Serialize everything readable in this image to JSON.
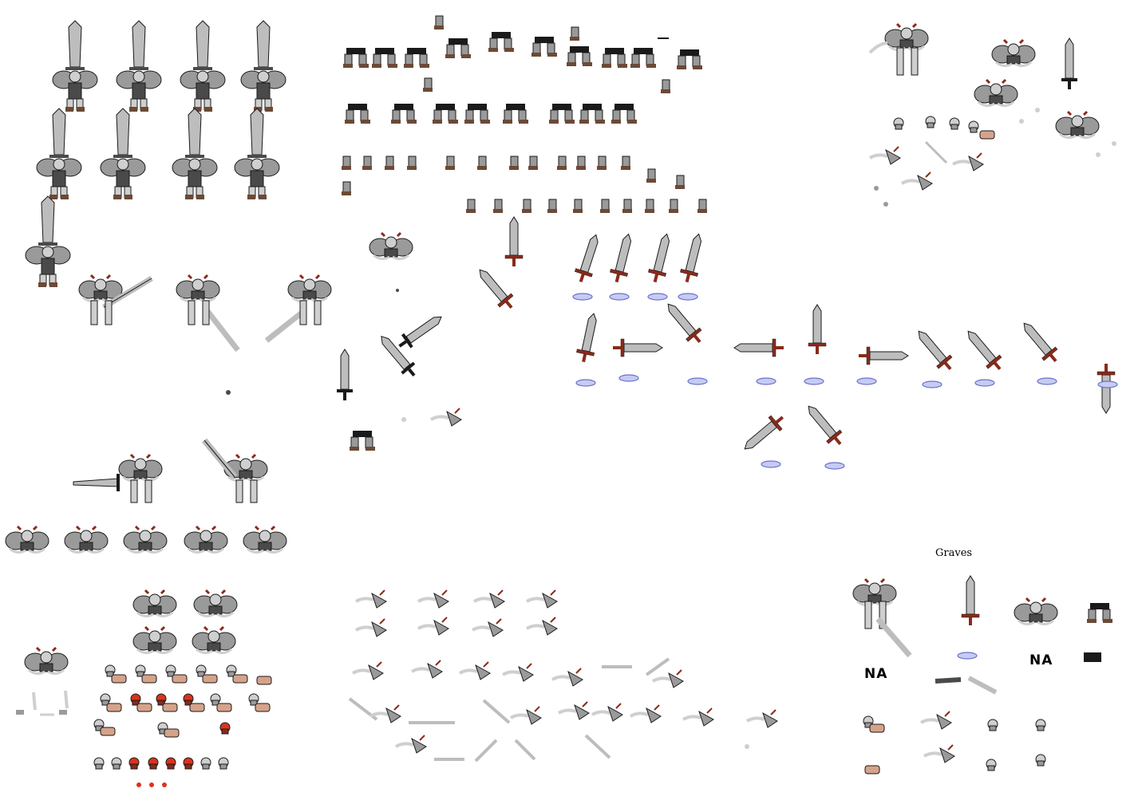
{
  "sheet": {
    "background": "#ffffff",
    "colors": {
      "armor": "#9a9a9a",
      "armor_dark": "#4a4a4a",
      "outline": "#1a1a1a",
      "skull": "#cfcfcf",
      "boot": "#6b4a36",
      "crossguard": "#8b2a1a",
      "blade": "#bdbdbd",
      "shadow_ring": "#9aa0e0",
      "flesh": "#d4a38a",
      "fire": "#d9341c"
    }
  },
  "labels": {
    "graves": "Graves",
    "na_1": "NA",
    "na_2": "NA"
  }
}
